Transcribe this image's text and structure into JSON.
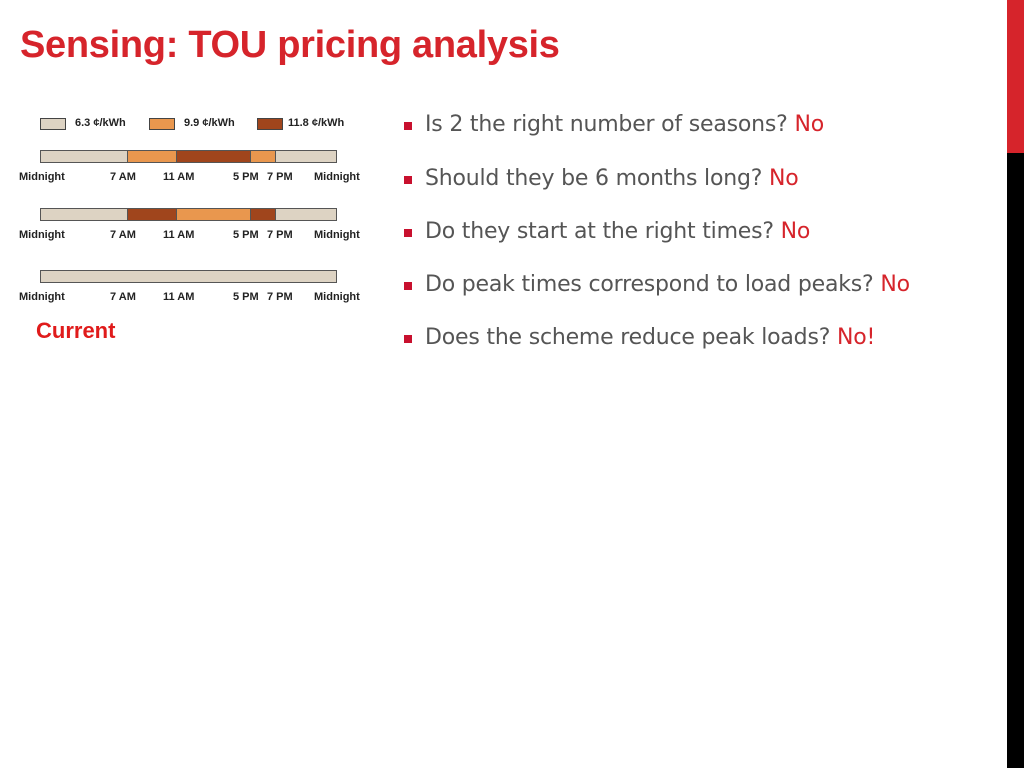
{
  "title": "Sensing: TOU pricing analysis",
  "colors": {
    "accent_red": "#d6242b",
    "rate_low": "#ddd3c3",
    "rate_mid": "#e9974e",
    "rate_high": "#a0451c"
  },
  "legend": [
    {
      "label": "6.3 ¢/kWh",
      "color": "#ddd3c3"
    },
    {
      "label": "9.9 ¢/kWh",
      "color": "#e9974e"
    },
    {
      "label": "11.8 ¢/kWh",
      "color": "#a0451c"
    }
  ],
  "time_labels": [
    "Midnight",
    "7 AM",
    "11 AM",
    "5 PM",
    "7 PM",
    "Midnight"
  ],
  "schedules": [
    {
      "segments": [
        {
          "start": 0,
          "end": 7,
          "rate": "6.3 ¢/kWh"
        },
        {
          "start": 7,
          "end": 11,
          "rate": "9.9 ¢/kWh"
        },
        {
          "start": 11,
          "end": 17,
          "rate": "11.8 ¢/kWh"
        },
        {
          "start": 17,
          "end": 19,
          "rate": "9.9 ¢/kWh"
        },
        {
          "start": 19,
          "end": 24,
          "rate": "6.3 ¢/kWh"
        }
      ]
    },
    {
      "segments": [
        {
          "start": 0,
          "end": 7,
          "rate": "6.3 ¢/kWh"
        },
        {
          "start": 7,
          "end": 11,
          "rate": "11.8 ¢/kWh"
        },
        {
          "start": 11,
          "end": 17,
          "rate": "9.9 ¢/kWh"
        },
        {
          "start": 17,
          "end": 19,
          "rate": "11.8 ¢/kWh"
        },
        {
          "start": 19,
          "end": 24,
          "rate": "6.3 ¢/kWh"
        }
      ]
    },
    {
      "segments": [
        {
          "start": 0,
          "end": 24,
          "rate": "6.3 ¢/kWh"
        }
      ]
    }
  ],
  "current_label": "Current",
  "bullets": [
    {
      "text": "Is 2 the right number of seasons? ",
      "answer": "No"
    },
    {
      "text": "Should they be 6 months long? ",
      "answer": "No"
    },
    {
      "text": "Do they start at the right times? ",
      "answer": "No"
    },
    {
      "text": "Do peak times correspond to load peaks? ",
      "answer": "No"
    },
    {
      "text": "Does the scheme reduce peak loads? ",
      "answer": "No!"
    }
  ]
}
